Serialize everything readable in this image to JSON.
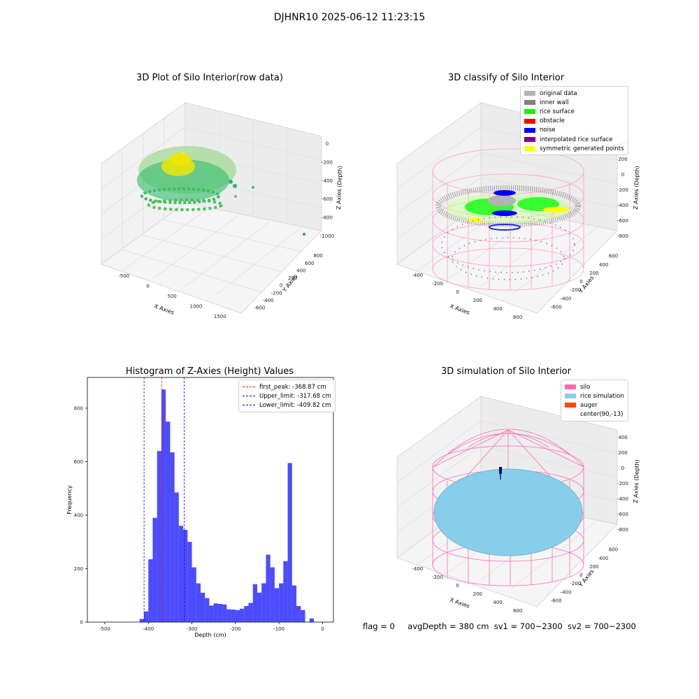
{
  "suptitle": "DJHNR10 2025-06-12 11:23:15",
  "panels": {
    "raw": {
      "title": "3D Plot of Silo Interior(row data)",
      "xlabel": "X Axies",
      "ylabel": "Y Axies",
      "zlabel": "Z Axies (Depth)",
      "xticks": [
        "-500",
        "0",
        "500",
        "1000",
        "1500"
      ],
      "yticks": [
        "800",
        "600",
        "400",
        "200",
        "0",
        "-200",
        "-400",
        "-600"
      ],
      "zticks": [
        "0",
        "-200",
        "-400",
        "-600",
        "-800",
        "-1000"
      ]
    },
    "classify": {
      "title": "3D classify of Silo Interior",
      "xlabel": "X Axies",
      "ylabel": "Y Axies",
      "zlabel": "Z Axies (Depth)",
      "xticks": [
        "-400",
        "-200",
        "0",
        "200",
        "400",
        "600"
      ],
      "yticks": [
        "600",
        "400",
        "200",
        "0",
        "-200",
        "-400",
        "-600"
      ],
      "zticks": [
        "400",
        "200",
        "0",
        "-200",
        "-400",
        "-600",
        "-800"
      ],
      "legend": [
        {
          "label": "original data",
          "color": "#b3b3b3"
        },
        {
          "label": "inner wall",
          "color": "#808080"
        },
        {
          "label": "rice surface",
          "color": "#00ff00"
        },
        {
          "label": "obstacle",
          "color": "#ff0000"
        },
        {
          "label": "noise",
          "color": "#0000ff"
        },
        {
          "label": "interpolated rice surface",
          "color": "#800080"
        },
        {
          "label": "symmetric generated points",
          "color": "#ffff00"
        }
      ]
    },
    "simulation": {
      "title": "3D simulation of Silo Interior",
      "xlabel": "X Axies",
      "ylabel": "Y Axies",
      "zlabel": "Z Axies (Depth)",
      "xticks": [
        "-400",
        "-200",
        "0",
        "200",
        "400",
        "600"
      ],
      "yticks": [
        "600",
        "400",
        "200",
        "0",
        "-200",
        "-400",
        "-600"
      ],
      "zticks": [
        "400",
        "200",
        "0",
        "-200",
        "-400",
        "-600",
        "-800"
      ],
      "legend": [
        {
          "label": "silo",
          "color": "#ff69b4"
        },
        {
          "label": "rice simulation",
          "color": "#87ceeb"
        },
        {
          "label": "auger",
          "color": "#ff4500"
        },
        {
          "label": "center(90,-13)",
          "color": ""
        }
      ]
    }
  },
  "chart_data": {
    "type": "bar",
    "title": "Histogram of Z-Axies (Height) Values",
    "xlabel": "Depth (cm)",
    "ylabel": "Frequency",
    "xlim": [
      -540,
      25
    ],
    "ylim": [
      0,
      915
    ],
    "xticks": [
      -500,
      -400,
      -300,
      -200,
      -100,
      0
    ],
    "yticks": [
      0,
      200,
      400,
      600,
      800
    ],
    "bar_color": "#0000ff",
    "bin_width": 10,
    "bins": [
      {
        "x": -420,
        "v": 12
      },
      {
        "x": -410,
        "v": 40
      },
      {
        "x": -400,
        "v": 235
      },
      {
        "x": -390,
        "v": 390
      },
      {
        "x": -380,
        "v": 640
      },
      {
        "x": -370,
        "v": 870
      },
      {
        "x": -360,
        "v": 750
      },
      {
        "x": -350,
        "v": 635
      },
      {
        "x": -340,
        "v": 485
      },
      {
        "x": -330,
        "v": 360
      },
      {
        "x": -320,
        "v": 345
      },
      {
        "x": -310,
        "v": 300
      },
      {
        "x": -300,
        "v": 205
      },
      {
        "x": -290,
        "v": 145
      },
      {
        "x": -280,
        "v": 110
      },
      {
        "x": -270,
        "v": 90
      },
      {
        "x": -260,
        "v": 62
      },
      {
        "x": -250,
        "v": 70
      },
      {
        "x": -240,
        "v": 68
      },
      {
        "x": -230,
        "v": 66
      },
      {
        "x": -220,
        "v": 48
      },
      {
        "x": -210,
        "v": 47
      },
      {
        "x": -200,
        "v": 45
      },
      {
        "x": -190,
        "v": 50
      },
      {
        "x": -180,
        "v": 60
      },
      {
        "x": -170,
        "v": 72
      },
      {
        "x": -160,
        "v": 142
      },
      {
        "x": -150,
        "v": 110
      },
      {
        "x": -140,
        "v": 145
      },
      {
        "x": -130,
        "v": 252
      },
      {
        "x": -120,
        "v": 205
      },
      {
        "x": -110,
        "v": 127
      },
      {
        "x": -100,
        "v": 145
      },
      {
        "x": -90,
        "v": 228
      },
      {
        "x": -80,
        "v": 595
      },
      {
        "x": -70,
        "v": 137
      },
      {
        "x": -60,
        "v": 60
      },
      {
        "x": -50,
        "v": 45
      },
      {
        "x": -30,
        "v": 14
      }
    ],
    "vlines": [
      {
        "label": "first_peak: -368.87 cm",
        "x": -368.87,
        "color": "#ff0000"
      },
      {
        "label": "Upper_limit: -317.68 cm",
        "x": -317.68,
        "color": "#0000ff"
      },
      {
        "label": "Lower_limit: -409.82 cm",
        "x": -409.82,
        "color": "#0000ff"
      }
    ],
    "legend_position": "top-right"
  },
  "footer": {
    "flag": "flag = 0",
    "avg": "avgDepth = 380 cm",
    "sv1": "sv1 = 700~2300",
    "sv2": "sv2 = 700~2300"
  }
}
